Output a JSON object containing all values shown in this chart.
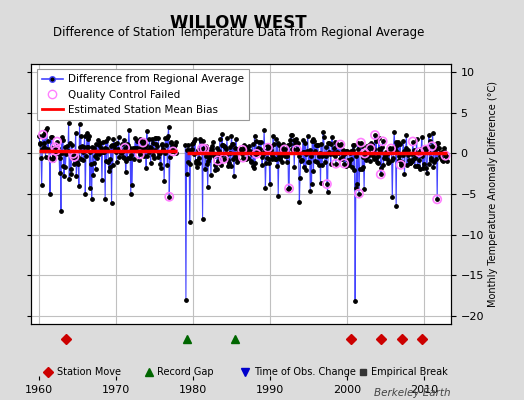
{
  "title": "WILLOW WEST",
  "subtitle": "Difference of Station Temperature Data from Regional Average",
  "ylabel_right": "Monthly Temperature Anomaly Difference (°C)",
  "credit": "Berkeley Earth",
  "xlim": [
    1959.0,
    2013.5
  ],
  "ylim": [
    -21,
    11
  ],
  "yticks": [
    -20,
    -15,
    -10,
    -5,
    0,
    5,
    10
  ],
  "xticks": [
    1960,
    1970,
    1980,
    1990,
    2000,
    2010
  ],
  "bg_color": "#dcdcdc",
  "plot_bg_color": "#ffffff",
  "grid_color": "#c0c0c0",
  "station_moves": [
    1963.5,
    2000.5,
    2004.5,
    2007.2,
    2009.8
  ],
  "record_gaps": [
    1979.2,
    1985.5
  ],
  "time_obs_changes": [],
  "empirical_breaks": [],
  "seg1_start": 1960,
  "seg1_end": 1977.9,
  "seg2_start": 1979.2,
  "seg2_end": 2013.0,
  "seg1_bias": 0.35,
  "seg2_bias": 0.05,
  "blue_line_color": "#4444ff",
  "dot_color": "#000000",
  "bias_color": "#ff0000",
  "qc_failed_color": "#ff80ff",
  "station_move_color": "#cc0000",
  "record_gap_color": "#006600",
  "time_obs_color": "#0000cc",
  "empirical_break_color": "#333333",
  "legend_fontsize": 7.5,
  "title_fontsize": 12,
  "subtitle_fontsize": 8.5,
  "axis_fontsize": 8,
  "credit_fontsize": 7.5
}
